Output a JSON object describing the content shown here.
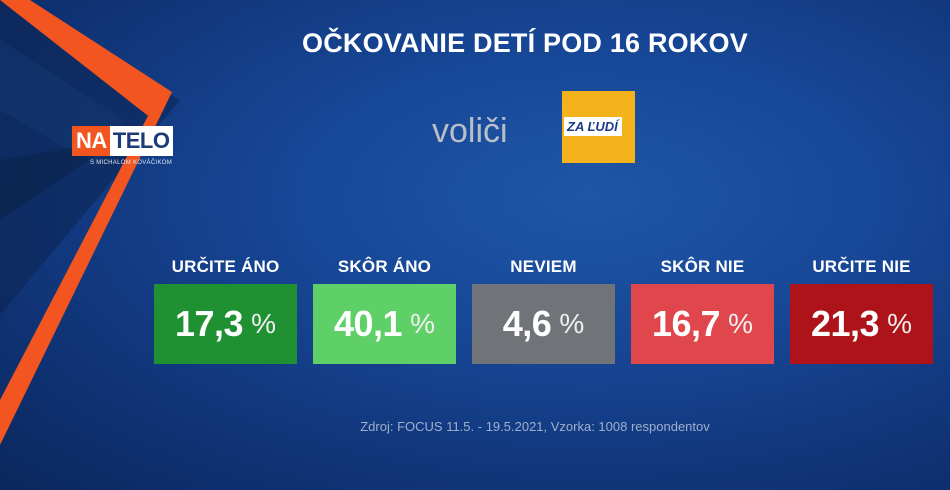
{
  "title": "OČKOVANIE DETÍ POD 16 ROKOV",
  "voters_label": "voliči",
  "party": {
    "name": "ZA ĽUDÍ",
    "color": "#f5b31b"
  },
  "logo": {
    "na": "NA",
    "telo": "TELO",
    "subtitle": "S MICHALOM KOVÁČIKOM"
  },
  "chart_data": {
    "type": "bar",
    "title": "OČKOVANIE DETÍ POD 16 ROKOV",
    "categories": [
      "URČITE ÁNO",
      "SKÔR ÁNO",
      "NEVIEM",
      "SKÔR NIE",
      "URČITE NIE"
    ],
    "values": [
      17.3,
      40.1,
      4.6,
      16.7,
      21.3
    ],
    "value_labels": [
      "17,3",
      "40,1",
      "4,6",
      "16,7",
      "21,3"
    ],
    "unit": "%",
    "colors": [
      "#1f9133",
      "#5fd068",
      "#707378",
      "#e0474d",
      "#ad1318"
    ]
  },
  "source": "Zdroj: FOCUS 11.5. - 19.5.2021, Vzorka: 1008 respondentov"
}
